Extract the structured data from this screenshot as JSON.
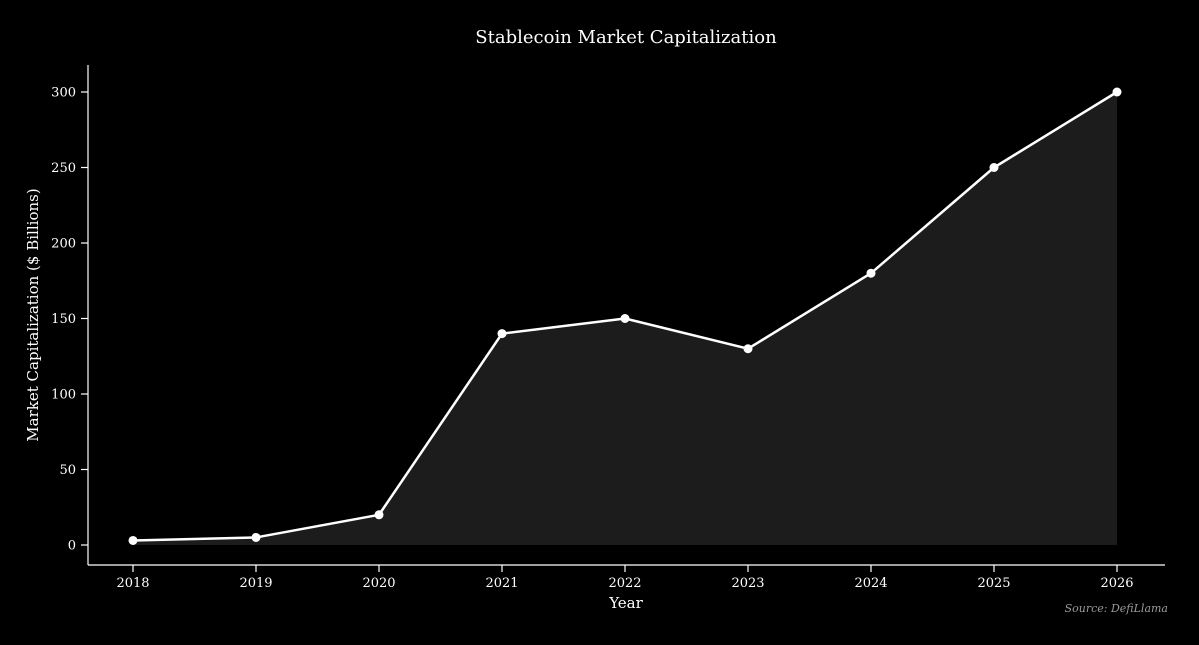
{
  "chart_data": {
    "type": "area",
    "title": "Stablecoin Market Capitalization",
    "xlabel": "Year",
    "ylabel": "Market Capitalization ($ Billions)",
    "source": "Source: DefiLlama",
    "categories": [
      2018,
      2019,
      2020,
      2021,
      2022,
      2023,
      2024,
      2025,
      2026
    ],
    "values": [
      3,
      5,
      20,
      140,
      150,
      130,
      180,
      250,
      300
    ],
    "yticks": [
      0,
      50,
      100,
      150,
      200,
      250,
      300
    ],
    "ylim": [
      0,
      300
    ],
    "grid": false,
    "legend": false,
    "colors": {
      "background": "#000000",
      "line": "#ffffff",
      "marker": "#ffffff",
      "area_fill": "#1c1c1c",
      "axis": "#ffffff",
      "tick_text": "#ffffff",
      "title_text": "#ffffff",
      "source_text": "#9a9a9a"
    }
  }
}
